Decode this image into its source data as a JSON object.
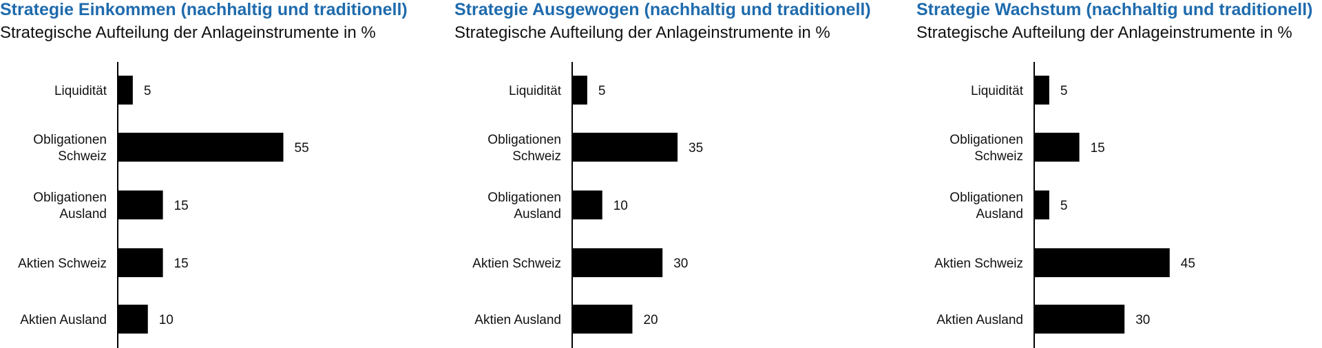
{
  "chart_data": [
    {
      "type": "bar",
      "orientation": "horizontal",
      "title": "Strategie Einkommen (nachhaltig und traditionell)",
      "subtitle": "Strategische Aufteilung der Anlageinstrumente in %",
      "categories": [
        [
          "Liquidität"
        ],
        [
          "Obligationen",
          "Schweiz"
        ],
        [
          "Obligationen",
          "Ausland"
        ],
        [
          "Aktien Schweiz"
        ],
        [
          "Aktien Ausland"
        ]
      ],
      "values": [
        5,
        55,
        15,
        15,
        10
      ],
      "xlim": [
        0,
        55
      ],
      "grid": false,
      "bar_color": "#000000"
    },
    {
      "type": "bar",
      "orientation": "horizontal",
      "title": "Strategie Ausgewogen (nachhaltig und traditionell)",
      "subtitle": "Strategische Aufteilung der Anlageinstrumente in %",
      "categories": [
        [
          "Liquidität"
        ],
        [
          "Obligationen",
          "Schweiz"
        ],
        [
          "Obligationen",
          "Ausland"
        ],
        [
          "Aktien Schweiz"
        ],
        [
          "Aktien Ausland"
        ]
      ],
      "values": [
        5,
        35,
        10,
        30,
        20
      ],
      "xlim": [
        0,
        55
      ],
      "grid": false,
      "bar_color": "#000000"
    },
    {
      "type": "bar",
      "orientation": "horizontal",
      "title": "Strategie Wachstum (nachhaltig und traditionell)",
      "subtitle": "Strategische Aufteilung der Anlageinstrumente in %",
      "categories": [
        [
          "Liquidität"
        ],
        [
          "Obligationen",
          "Schweiz"
        ],
        [
          "Obligationen",
          "Ausland"
        ],
        [
          "Aktien Schweiz"
        ],
        [
          "Aktien Ausland"
        ]
      ],
      "values": [
        5,
        15,
        5,
        45,
        30
      ],
      "xlim": [
        0,
        55
      ],
      "grid": false,
      "bar_color": "#000000"
    }
  ],
  "colors": {
    "title": "#1f6bad",
    "text": "#111111",
    "bar": "#000000",
    "axis": "#000000"
  }
}
